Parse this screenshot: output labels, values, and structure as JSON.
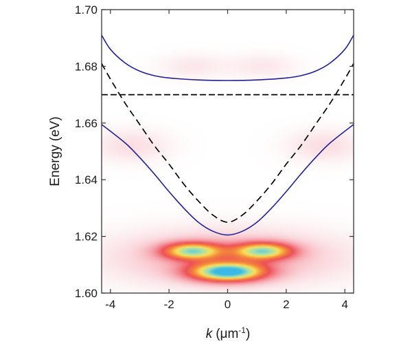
{
  "chart_data": {
    "type": "heatmap",
    "title": "",
    "xlabel": {
      "symbol": "k",
      "unit": "(μm",
      "exponent": "-1",
      "close": ")"
    },
    "ylabel": "Energy (eV)",
    "xlim": [
      -4.3,
      4.3
    ],
    "ylim": [
      1.6,
      1.7
    ],
    "xticks": [
      -4,
      -2,
      0,
      2,
      4
    ],
    "xtick_labels": [
      "-4",
      "-2",
      "0",
      "2",
      "4"
    ],
    "yticks": [
      1.6,
      1.62,
      1.64,
      1.66,
      1.68,
      1.7
    ],
    "ytick_labels": [
      "1.60",
      "1.62",
      "1.64",
      "1.66",
      "1.68",
      "1.70"
    ],
    "grid": false,
    "series": [
      {
        "style": "solid",
        "color": "#1f1f99",
        "x": [
          -4.3,
          -3.5,
          -3.0,
          -2.5,
          -2.0,
          -1.5,
          -1.0,
          -0.5,
          0,
          0.5,
          1.0,
          1.5,
          2.0,
          2.5,
          3.0,
          3.5,
          4.3
        ],
        "y": [
          1.6595,
          1.653,
          1.6478,
          1.642,
          1.6358,
          1.63,
          1.625,
          1.6218,
          1.6205,
          1.6218,
          1.625,
          1.63,
          1.6358,
          1.642,
          1.6478,
          1.653,
          1.6595
        ]
      },
      {
        "style": "solid",
        "color": "#1f1f99",
        "x": [
          -4.3,
          -4.0,
          -3.5,
          -3.0,
          -2.5,
          -2.0,
          -1.0,
          0,
          1.0,
          2.0,
          2.5,
          3.0,
          3.5,
          4.0,
          4.3
        ],
        "y": [
          1.691,
          1.686,
          1.6812,
          1.6783,
          1.6767,
          1.6759,
          1.6752,
          1.675,
          1.6752,
          1.6759,
          1.6767,
          1.6783,
          1.6812,
          1.686,
          1.691
        ]
      },
      {
        "style": "dashed",
        "color": "#000000",
        "x": [
          -4.3,
          -4.0,
          -3.5,
          -3.0,
          -2.5,
          -2.0,
          -1.5,
          -1.0,
          -0.5,
          0,
          0.5,
          1.0,
          1.5,
          2.0,
          2.5,
          3.0,
          3.5,
          4.0,
          4.3
        ],
        "y": [
          1.681,
          1.6755,
          1.667,
          1.6595,
          1.652,
          1.6455,
          1.6385,
          1.6325,
          1.6275,
          1.625,
          1.6275,
          1.6325,
          1.6385,
          1.6455,
          1.652,
          1.6595,
          1.667,
          1.6755,
          1.681
        ]
      },
      {
        "style": "dashed",
        "color": "#000000",
        "x": [
          -4.3,
          4.3
        ],
        "y": [
          1.67,
          1.67
        ]
      }
    ],
    "emission_spots": [
      {
        "x": 0.0,
        "y": 1.6075,
        "sx": 0.85,
        "sy": 0.0022,
        "peak": 1.0
      },
      {
        "x": -1.2,
        "y": 1.6148,
        "sx": 0.68,
        "sy": 0.002,
        "peak": 0.75
      },
      {
        "x": 1.2,
        "y": 1.6148,
        "sx": 0.68,
        "sy": 0.002,
        "peak": 0.75
      },
      {
        "x": 0.0,
        "y": 1.6125,
        "sx": 2.6,
        "sy": 0.0065,
        "peak": 0.18
      },
      {
        "x": -3.3,
        "y": 1.652,
        "sx": 0.9,
        "sy": 0.004,
        "peak": 0.07
      },
      {
        "x": 3.3,
        "y": 1.652,
        "sx": 0.9,
        "sy": 0.004,
        "peak": 0.07
      },
      {
        "x": -1.2,
        "y": 1.68,
        "sx": 0.8,
        "sy": 0.003,
        "peak": 0.05
      },
      {
        "x": 1.2,
        "y": 1.68,
        "sx": 0.8,
        "sy": 0.003,
        "peak": 0.05
      }
    ],
    "colormap": [
      "#ffffff",
      "#fbe3e6",
      "#f7a9b2",
      "#ee5056",
      "#f48a3a",
      "#fbe15a",
      "#9ee0b6",
      "#3ab9e6"
    ]
  }
}
